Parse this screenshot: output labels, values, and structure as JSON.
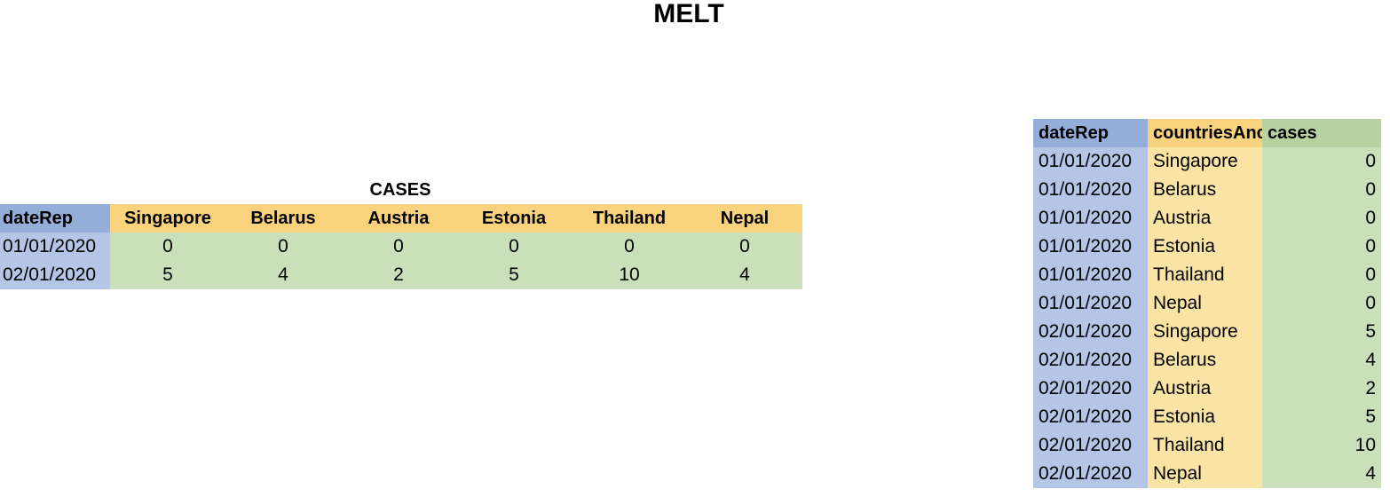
{
  "title": "MELT",
  "wide_table": {
    "caption": "CASES",
    "date_header": "dateRep",
    "countries": [
      "Singapore",
      "Belarus",
      "Austria",
      "Estonia",
      "Thailand",
      "Nepal"
    ],
    "rows": [
      {
        "date": "01/01/2020",
        "values": [
          "0",
          "0",
          "0",
          "0",
          "0",
          "0"
        ]
      },
      {
        "date": "02/01/2020",
        "values": [
          "5",
          "4",
          "2",
          "5",
          "10",
          "4"
        ]
      }
    ]
  },
  "long_table": {
    "headers": [
      "dateRep",
      "countriesAnc",
      "cases"
    ],
    "rows": [
      {
        "date": "01/01/2020",
        "country": "Singapore",
        "cases": "0"
      },
      {
        "date": "01/01/2020",
        "country": "Belarus",
        "cases": "0"
      },
      {
        "date": "01/01/2020",
        "country": "Austria",
        "cases": "0"
      },
      {
        "date": "01/01/2020",
        "country": "Estonia",
        "cases": "0"
      },
      {
        "date": "01/01/2020",
        "country": "Thailand",
        "cases": "0"
      },
      {
        "date": "01/01/2020",
        "country": "Nepal",
        "cases": "0"
      },
      {
        "date": "02/01/2020",
        "country": "Singapore",
        "cases": "5"
      },
      {
        "date": "02/01/2020",
        "country": "Belarus",
        "cases": "4"
      },
      {
        "date": "02/01/2020",
        "country": "Austria",
        "cases": "2"
      },
      {
        "date": "02/01/2020",
        "country": "Estonia",
        "cases": "5"
      },
      {
        "date": "02/01/2020",
        "country": "Thailand",
        "cases": "10"
      },
      {
        "date": "02/01/2020",
        "country": "Nepal",
        "cases": "4"
      }
    ]
  },
  "colors": {
    "date_header": "#95aed9",
    "date_cell": "#b4c5e6",
    "country_header": "#f8d27c",
    "country_cell": "#f9e3a5",
    "value_header": "#b7d2a0",
    "value_cell": "#cae0bb"
  }
}
